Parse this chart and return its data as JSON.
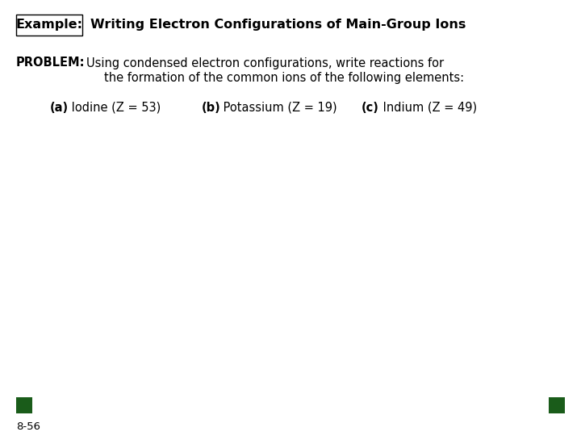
{
  "bg_color": "#ffffff",
  "example_label": "Example:",
  "title_text": "Writing Electron Configurations of Main-Group Ions",
  "problem_label": "PROBLEM:",
  "problem_line1": "Using condensed electron configurations, write reactions for",
  "problem_line2": "the formation of the common ions of the following elements:",
  "part_a_bold": "(a)",
  "part_a_rest": " Iodine (Z = 53)",
  "part_b_bold": "(b)",
  "part_b_rest": " Potassium (Z = 19)",
  "part_c_bold": "(c)",
  "part_c_rest": " Indium (Z = 49)",
  "page_number": "8-56",
  "dark_green": "#1a5c1a",
  "title_fontsize": 11.5,
  "body_fontsize": 10.5,
  "small_fontsize": 9.5
}
